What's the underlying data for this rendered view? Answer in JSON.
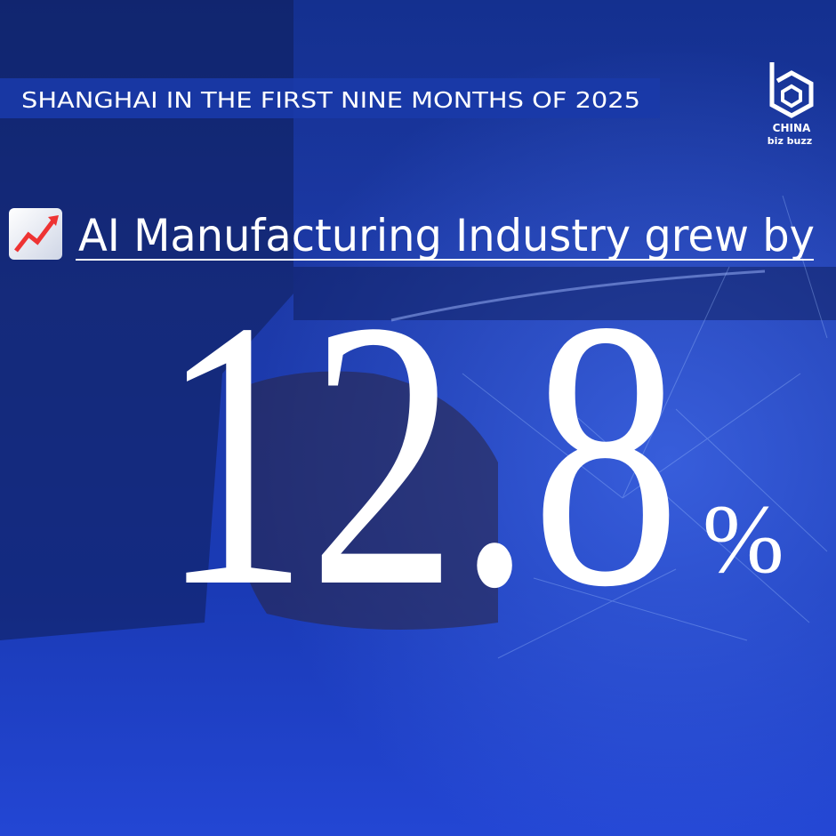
{
  "header": {
    "banner": "SHANGHAI IN THE FIRST NINE MONTHS OF 2025"
  },
  "logo": {
    "line1": "CHINA",
    "line2": "biz buzz"
  },
  "headline": "AI Manufacturing Industry grew by",
  "figure": {
    "value": "12.8",
    "unit": "%"
  }
}
